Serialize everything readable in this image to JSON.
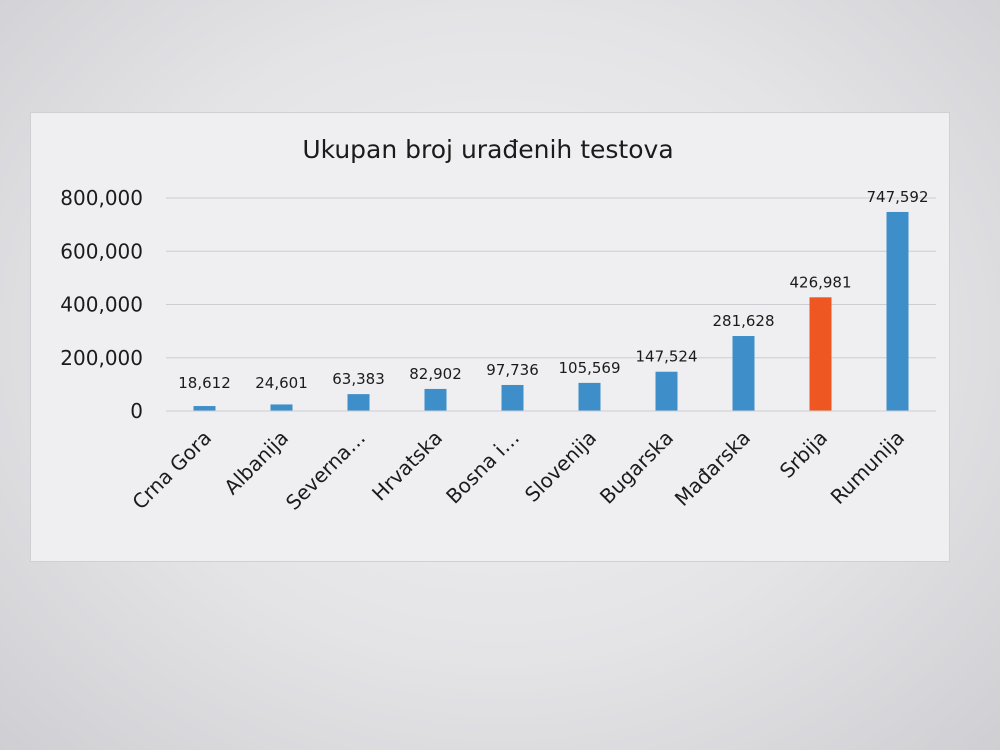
{
  "chart_data": {
    "type": "bar",
    "title": "Ukupan broj urađenih testova",
    "categories": [
      "Crna Gora",
      "Albanija",
      "Severna…",
      "Hrvatska",
      "Bosna i…",
      "Slovenija",
      "Bugarska",
      "Mađarska",
      "Srbija",
      "Rumunija"
    ],
    "values": [
      18612,
      24601,
      63383,
      82902,
      97736,
      105569,
      147524,
      281628,
      426981,
      747592
    ],
    "data_labels": [
      "18,612",
      "24,601",
      "63,383",
      "82,902",
      "97,736",
      "105,569",
      "147,524",
      "281,628",
      "426,981",
      "747,592"
    ],
    "y_ticks": [
      0,
      200000,
      400000,
      600000,
      800000
    ],
    "y_tick_labels": [
      "0",
      "200,000",
      "400,000",
      "600,000",
      "800,000"
    ],
    "ylim": [
      0,
      800000
    ],
    "grid": true,
    "legend": "none",
    "colors": {
      "default_bar": "#3e8fc9",
      "highlight_bar": "#ee5622",
      "grid": "#cdcdd2"
    },
    "highlight_index": 8
  }
}
